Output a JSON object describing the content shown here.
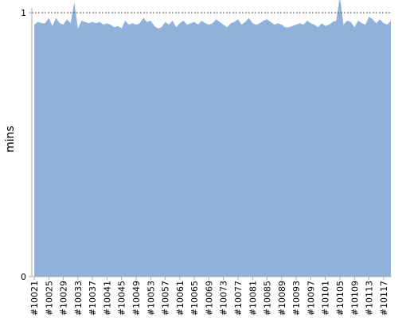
{
  "chart_data": {
    "type": "area",
    "title": "",
    "xlabel": "",
    "ylabel": "mins",
    "ylim": [
      0,
      1
    ],
    "y_ticks": [
      "0",
      "1"
    ],
    "grid": false,
    "legend": "none",
    "series_color": "#8fb1da",
    "reference_line": {
      "y": 1,
      "style": "dotted",
      "color": "#555555"
    },
    "x": [
      "#10021",
      "#10022",
      "#10023",
      "#10024",
      "#10025",
      "#10026",
      "#10027",
      "#10028",
      "#10029",
      "#10030",
      "#10031",
      "#10032",
      "#10033",
      "#10034",
      "#10035",
      "#10036",
      "#10037",
      "#10038",
      "#10039",
      "#10040",
      "#10041",
      "#10042",
      "#10043",
      "#10044",
      "#10045",
      "#10046",
      "#10047",
      "#10048",
      "#10049",
      "#10050",
      "#10051",
      "#10052",
      "#10053",
      "#10054",
      "#10055",
      "#10056",
      "#10057",
      "#10058",
      "#10059",
      "#10060",
      "#10061",
      "#10062",
      "#10063",
      "#10064",
      "#10065",
      "#10066",
      "#10067",
      "#10068",
      "#10069",
      "#10070",
      "#10071",
      "#10072",
      "#10073",
      "#10074",
      "#10075",
      "#10076",
      "#10077",
      "#10078",
      "#10079",
      "#10080",
      "#10081",
      "#10082",
      "#10083",
      "#10084",
      "#10085",
      "#10086",
      "#10087",
      "#10088",
      "#10089",
      "#10090",
      "#10091",
      "#10092",
      "#10093",
      "#10094",
      "#10095",
      "#10096",
      "#10097",
      "#10098",
      "#10099",
      "#10100",
      "#10101",
      "#10102",
      "#10103",
      "#10104",
      "#10105",
      "#10106",
      "#10107",
      "#10108",
      "#10109",
      "#10110",
      "#10111",
      "#10112",
      "#10113",
      "#10114",
      "#10115",
      "#10116",
      "#10117",
      "#10118",
      "#10119"
    ],
    "x_tick_labels": [
      "#10021",
      "#10025",
      "#10029",
      "#10033",
      "#10037",
      "#10041",
      "#10045",
      "#10049",
      "#10053",
      "#10057",
      "#10061",
      "#10065",
      "#10069",
      "#10073",
      "#10077",
      "#10081",
      "#10085",
      "#10089",
      "#10093",
      "#10097",
      "#10101",
      "#10105",
      "#10109",
      "#10113",
      "#10117"
    ],
    "values": [
      0.955,
      0.965,
      0.96,
      0.96,
      0.98,
      0.95,
      0.98,
      0.96,
      0.955,
      0.975,
      0.96,
      1.04,
      0.94,
      0.97,
      0.965,
      0.96,
      0.965,
      0.96,
      0.965,
      0.955,
      0.96,
      0.955,
      0.945,
      0.95,
      0.94,
      0.97,
      0.955,
      0.96,
      0.955,
      0.96,
      0.98,
      0.965,
      0.97,
      0.95,
      0.94,
      0.945,
      0.965,
      0.955,
      0.97,
      0.945,
      0.96,
      0.97,
      0.955,
      0.96,
      0.965,
      0.955,
      0.97,
      0.96,
      0.955,
      0.96,
      0.975,
      0.965,
      0.955,
      0.945,
      0.96,
      0.965,
      0.975,
      0.955,
      0.965,
      0.98,
      0.96,
      0.955,
      0.96,
      0.97,
      0.975,
      0.965,
      0.955,
      0.96,
      0.955,
      0.945,
      0.945,
      0.95,
      0.955,
      0.96,
      0.955,
      0.97,
      0.96,
      0.955,
      0.945,
      0.96,
      0.95,
      0.955,
      0.965,
      0.97,
      1.06,
      0.955,
      0.97,
      0.965,
      0.945,
      0.97,
      0.96,
      0.955,
      0.985,
      0.975,
      0.96,
      0.975,
      0.96,
      0.955,
      0.97
    ]
  }
}
